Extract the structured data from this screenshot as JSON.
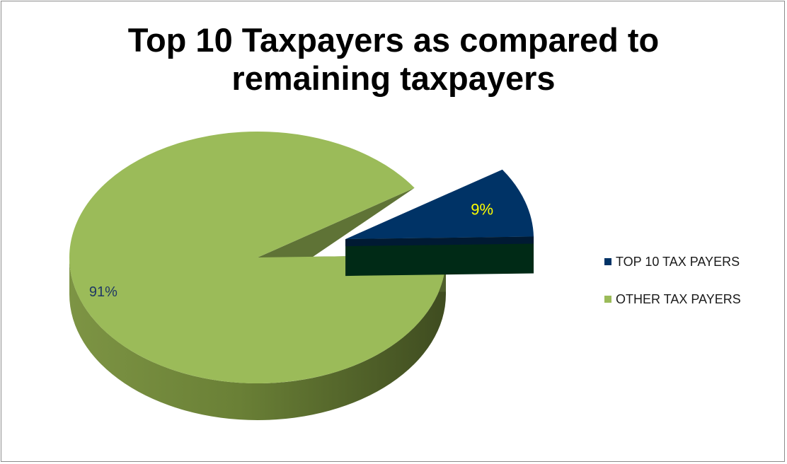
{
  "chart_data": {
    "type": "pie",
    "title_lines": [
      "Top 10 Taxpayers as compared to",
      "remaining taxpayers"
    ],
    "slices": [
      {
        "name": "TOP 10 TAX PAYERS",
        "value": 9,
        "label": "9%",
        "color": "#003366",
        "side_color": "#002a16",
        "label_color": "#ffff00"
      },
      {
        "name": "OTHER TAX PAYERS",
        "value": 91,
        "label": "91%",
        "color": "#9bbb59",
        "side_color": "#6b7f3c",
        "label_color": "#1f3864"
      }
    ],
    "legend_position": "right",
    "exploded": "TOP 10 TAX PAYERS",
    "style": "3d"
  }
}
